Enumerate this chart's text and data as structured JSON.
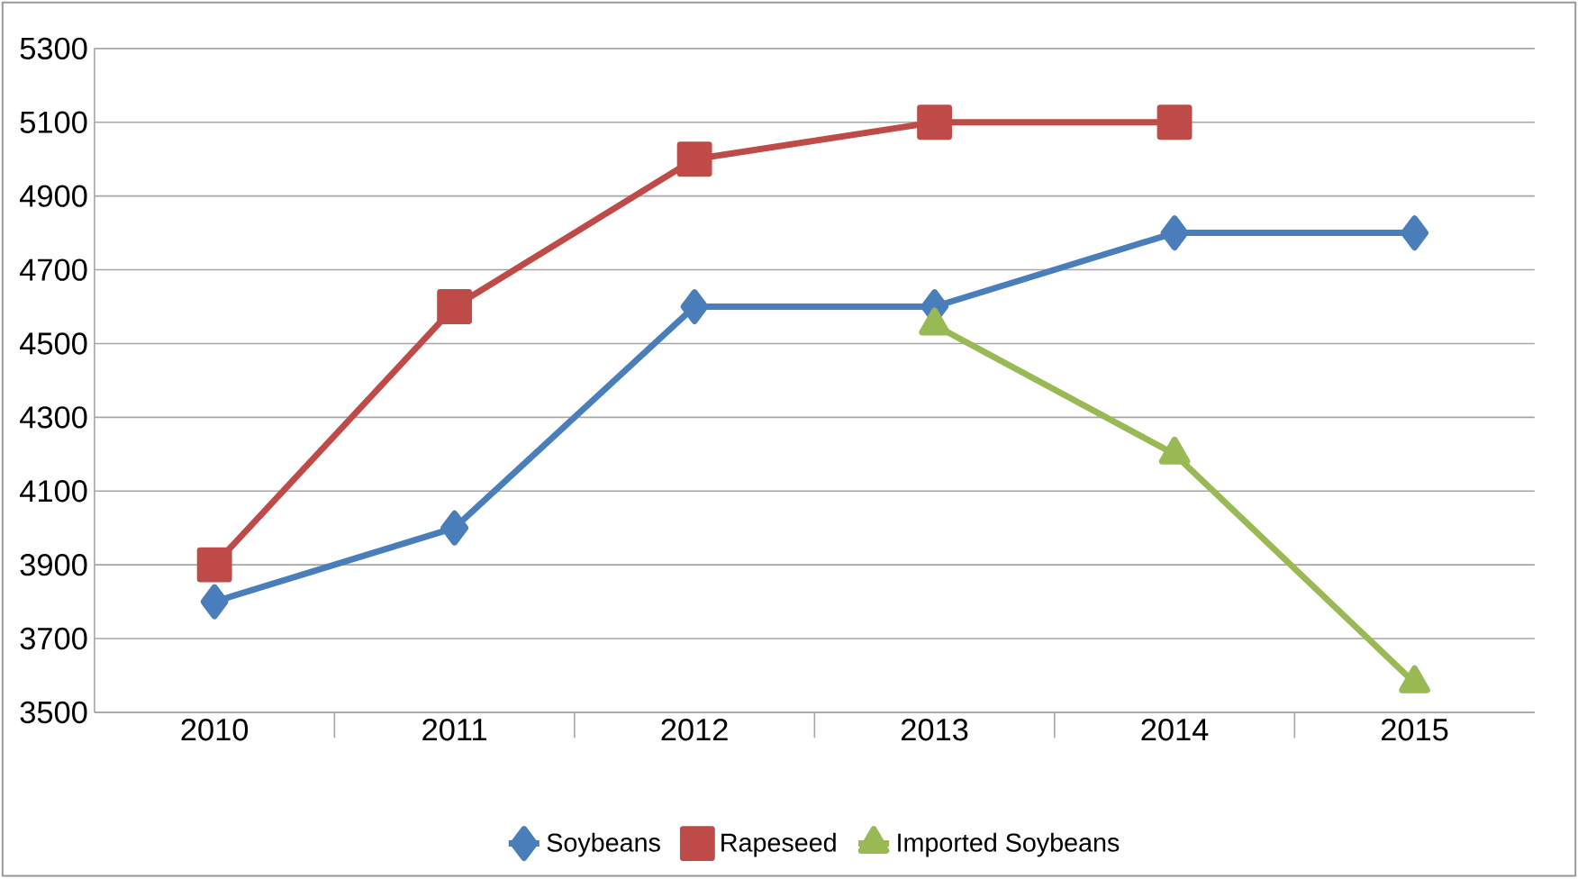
{
  "chart_data": {
    "type": "line",
    "categories": [
      "2010",
      "2011",
      "2012",
      "2013",
      "2014",
      "2015"
    ],
    "series": [
      {
        "name": "Soybeans",
        "color": "#4a7ebb",
        "marker": "diamond",
        "values": [
          3800,
          4000,
          4600,
          4600,
          4800,
          4800
        ]
      },
      {
        "name": "Rapeseed",
        "color": "#be4b48",
        "marker": "square",
        "values": [
          3900,
          4600,
          5000,
          5100,
          5100,
          null
        ]
      },
      {
        "name": "Imported Soybeans",
        "color": "#98b954",
        "marker": "triangle",
        "values": [
          null,
          null,
          null,
          4550,
          4200,
          3580
        ]
      }
    ],
    "ylim": [
      3500,
      5300
    ],
    "yticks": [
      3500,
      3700,
      3900,
      4100,
      4300,
      4500,
      4700,
      4900,
      5100,
      5300
    ],
    "grid": "y",
    "legend": "bottom",
    "line_style": "solid"
  }
}
